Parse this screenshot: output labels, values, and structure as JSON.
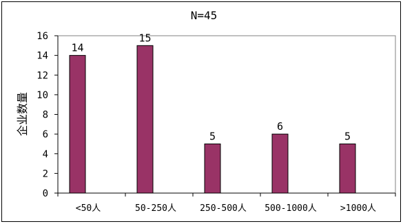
{
  "chart_data": {
    "type": "bar",
    "title": "N=45",
    "ylabel": "企业数量",
    "xlabel": "",
    "categories": [
      "<50人",
      "50-250人",
      "250-500人",
      "500-1000人",
      ">1000人"
    ],
    "values": [
      14,
      15,
      5,
      6,
      5
    ],
    "data_labels": [
      "14",
      "15",
      "5",
      "6",
      "5"
    ],
    "ylim": [
      0,
      16
    ],
    "yticks": [
      "0",
      "2",
      "4",
      "6",
      "8",
      "10",
      "12",
      "14",
      "16"
    ],
    "grid": false,
    "legend": "none",
    "bar_color": "#993366"
  }
}
